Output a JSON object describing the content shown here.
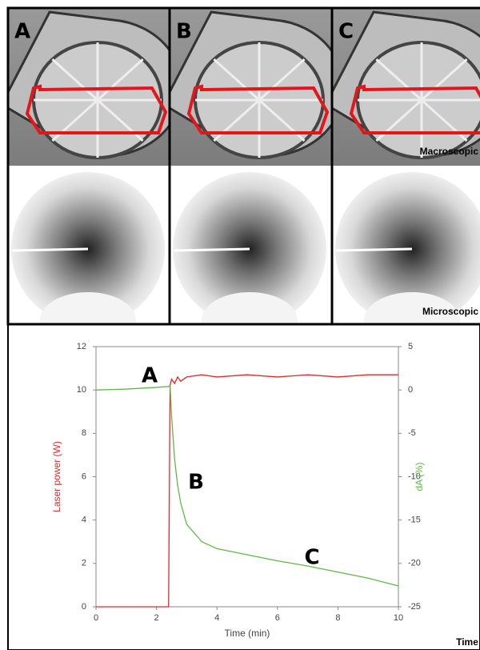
{
  "panels": {
    "letters": [
      "A",
      "B",
      "C"
    ],
    "row_labels": [
      "Macroscopic",
      "Microscopic"
    ]
  },
  "corner_label": "Time",
  "chart_data": {
    "type": "line",
    "x": [
      0,
      1,
      2,
      2.4,
      2.45,
      2.5,
      2.6,
      2.7,
      2.8,
      3,
      3.5,
      4,
      5,
      6,
      7,
      8,
      9,
      10
    ],
    "series": [
      {
        "name": "Laser power (W)",
        "color": "#e8262b",
        "values": [
          0,
          0,
          0,
          0,
          10.2,
          10.5,
          10.3,
          10.6,
          10.4,
          10.6,
          10.7,
          10.6,
          10.7,
          10.6,
          10.7,
          10.6,
          10.7,
          10.7
        ]
      },
      {
        "name": "dA (%)",
        "color": "#5fb845",
        "axis": "y2",
        "values": [
          0,
          0.1,
          0.3,
          0.4,
          0.5,
          -3,
          -8,
          -11,
          -13,
          -15.5,
          -17.5,
          -18.3,
          -19,
          -19.7,
          -20.3,
          -21,
          -21.7,
          -22.6
        ]
      }
    ],
    "xlabel": "Time (min)",
    "xlim": [
      0,
      10
    ],
    "xticks": [
      0,
      2,
      4,
      6,
      8,
      10
    ],
    "ylim": [
      0,
      12
    ],
    "yticks": [
      0,
      2,
      4,
      6,
      8,
      10,
      12
    ],
    "y2lim": [
      -25,
      5
    ],
    "y2ticks": [
      -25,
      -20,
      -15,
      -10,
      -5,
      0,
      5
    ],
    "annotations": [
      "A",
      "B",
      "C"
    ]
  }
}
